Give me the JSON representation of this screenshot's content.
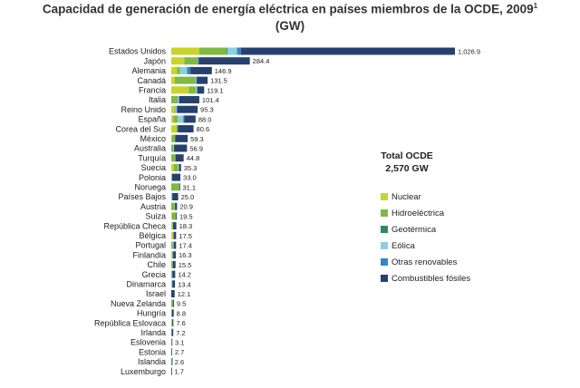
{
  "title": "Capacidad de generación de energía eléctrica en países miembros de la OCDE, 2009",
  "title_footnote": "1",
  "unit": "(GW)",
  "total": {
    "label": "Total OCDE",
    "value": "2,570 GW"
  },
  "colors": {
    "nuclear": "#c8d42c",
    "hidro": "#80b842",
    "geo": "#2e8c5c",
    "eolica": "#8ccfe0",
    "otras": "#3c82bf",
    "comb": "#27406e"
  },
  "legend": [
    {
      "key": "nuclear",
      "label": "Nuclear"
    },
    {
      "key": "hidro",
      "label": "Hidroeléctrica"
    },
    {
      "key": "geo",
      "label": "Geotérmica"
    },
    {
      "key": "eolica",
      "label": "Eólica"
    },
    {
      "key": "otras",
      "label": "Otras renovables"
    },
    {
      "key": "comb",
      "label": "Combustibles fósiles"
    }
  ],
  "chart_data": {
    "type": "bar",
    "orientation": "horizontal",
    "stacked": true,
    "xlim": [
      0,
      1026.9
    ],
    "categories": [
      "Estados Unidos",
      "Japón",
      "Alemania",
      "Canadá",
      "Francia",
      "Italia",
      "Reino Unido",
      "España",
      "Corea del Sur",
      "México",
      "Australia",
      "Turquía",
      "Suecia",
      "Polonia",
      "Noruega",
      "Países Bajos",
      "Austria",
      "Suiza",
      "República Checa",
      "Bélgica",
      "Portugal",
      "Finlandia",
      "Chile",
      "Grecia",
      "Dinamarca",
      "Israel",
      "Nueva Zelanda",
      "Hungría",
      "República Eslovaca",
      "Irlanda",
      "Eslovenia",
      "Estonia",
      "Islandia",
      "Luxemburgo"
    ],
    "totals": [
      1026.9,
      284.4,
      146.9,
      131.5,
      119.1,
      101.4,
      95.3,
      88.0,
      80.6,
      59.3,
      56.9,
      44.8,
      35.3,
      33.0,
      31.1,
      25.0,
      20.9,
      19.5,
      18.3,
      17.5,
      17.4,
      16.3,
      15.5,
      14.2,
      13.4,
      12.1,
      9.5,
      8.8,
      7.6,
      7.2,
      3.1,
      2.7,
      2.6,
      1.7
    ],
    "total_labels": [
      "1,026.9",
      "284.4",
      "146.9",
      "131.5",
      "119.1",
      "101.4",
      "95.3",
      "88.0",
      "80.6",
      "59.3",
      "56.9",
      "44.8",
      "35.3",
      "33.0",
      "31.1",
      "25.0",
      "20.9",
      "19.5",
      "18.3",
      "17.5",
      "17.4",
      "16.3",
      "15.5",
      "14.2",
      "13.4",
      "12.1",
      "9.5",
      "8.8",
      "7.6",
      "7.2",
      "3.1",
      "2.7",
      "2.6",
      "1.7"
    ],
    "series": [
      {
        "name": "Nuclear",
        "key": "nuclear",
        "values": [
          101.0,
          47.0,
          20.5,
          13.0,
          63.0,
          0,
          10.9,
          7.5,
          17.7,
          1.4,
          0,
          0,
          9.0,
          0,
          0,
          0.5,
          0,
          3.2,
          3.7,
          5.9,
          0,
          2.7,
          0,
          0,
          0,
          0,
          0,
          1.9,
          1.8,
          0,
          0.7,
          0,
          0,
          0
        ]
      },
      {
        "name": "Hidroeléctrica",
        "key": "hidro",
        "values": [
          99.0,
          47.0,
          11.0,
          74.0,
          25.3,
          21.4,
          4.5,
          16.6,
          5.5,
          11.4,
          7.8,
          14.0,
          16.2,
          2.3,
          29.5,
          0,
          12.6,
          13.5,
          2.2,
          1.4,
          5.0,
          3.1,
          5.5,
          3.2,
          0,
          0,
          5.3,
          0,
          2.4,
          0.5,
          1.0,
          0,
          1.9,
          1.1
        ]
      },
      {
        "name": "Geotérmica",
        "key": "geo",
        "values": [
          3.0,
          0.5,
          0,
          0,
          0,
          0.8,
          0,
          0,
          0,
          1.0,
          0,
          0,
          0,
          0,
          0,
          0,
          0,
          0,
          0,
          0,
          0,
          0,
          0,
          0,
          0,
          0,
          0.6,
          0,
          0,
          0,
          0,
          0,
          0.6,
          0
        ]
      },
      {
        "name": "Eólica",
        "key": "eolica",
        "values": [
          35.0,
          2.1,
          25.8,
          3.3,
          4.5,
          4.9,
          4.1,
          19.1,
          0.4,
          0.5,
          1.7,
          0.8,
          1.5,
          0.7,
          0.4,
          2.2,
          1.0,
          0,
          0.2,
          0.6,
          3.5,
          0.1,
          0.2,
          1.1,
          3.5,
          0,
          0.5,
          0.2,
          0,
          1.3,
          0,
          0.1,
          0,
          0
        ]
      },
      {
        "name": "Otras renovables",
        "key": "otras",
        "values": [
          14.0,
          3.0,
          12.0,
          2.0,
          1.5,
          2.5,
          2.0,
          4.0,
          0.5,
          0.5,
          1.0,
          0.3,
          2.0,
          0.5,
          0.1,
          1.5,
          0.5,
          0.3,
          0.5,
          1.5,
          0.5,
          1.5,
          0.5,
          0.2,
          1.0,
          0.1,
          0.1,
          0.3,
          0.1,
          0.1,
          0.1,
          0.1,
          0,
          0.1
        ]
      },
      {
        "name": "Combustibles fósiles",
        "key": "comb",
        "values": [
          774.9,
          184.8,
          77.6,
          39.2,
          24.8,
          71.8,
          73.8,
          40.8,
          56.5,
          44.5,
          46.4,
          29.7,
          6.6,
          29.5,
          1.1,
          20.8,
          6.8,
          2.5,
          11.7,
          8.1,
          8.4,
          8.9,
          9.3,
          9.7,
          8.9,
          12.0,
          3.0,
          6.4,
          3.3,
          5.3,
          1.3,
          2.5,
          0.1,
          0.5
        ]
      }
    ]
  }
}
